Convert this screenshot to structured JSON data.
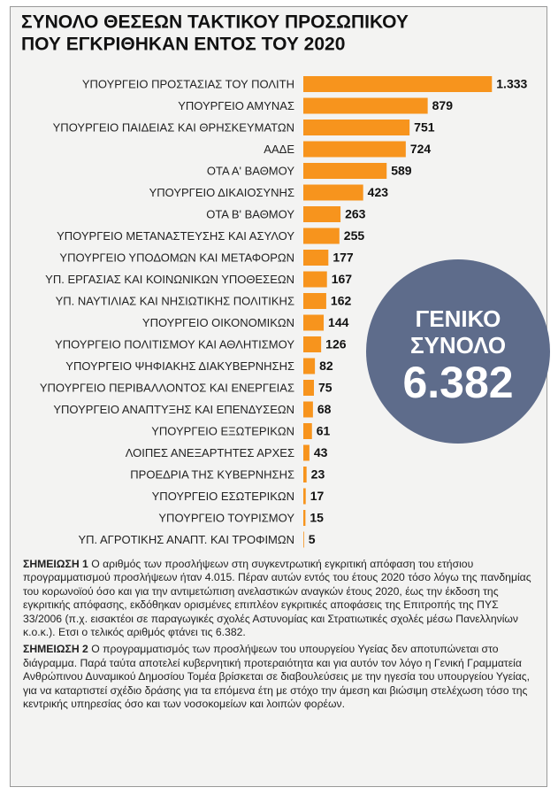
{
  "chart_data": {
    "type": "hbar",
    "title_lines": [
      "ΣΥΝΟΛΟ ΘΕΣΕΩΝ ΤΑΚΤΙΚΟΥ ΠΡΟΣΩΠΙΚΟΥ",
      "ΠΟΥ ΕΓΚΡΙΘΗΚΑΝ ΕΝΤΟΣ ΤΟΥ 2020"
    ],
    "categories": [
      "ΥΠΟΥΡΓΕΙΟ ΠΡΟΣΤΑΣΙΑΣ ΤΟΥ ΠΟΛΙΤΗ",
      "ΥΠΟΥΡΓΕΙΟ ΑΜΥΝΑΣ",
      "ΥΠΟΥΡΓΕΙΟ ΠΑΙΔΕΙΑΣ ΚΑΙ ΘΡΗΣΚΕΥΜΑΤΩΝ",
      "ΑΑΔΕ",
      "ΟΤΑ Α' ΒΑΘΜΟΥ",
      "ΥΠΟΥΡΓΕΙΟ ΔΙΚΑΙΟΣΥΝΗΣ",
      "ΟΤΑ Β' ΒΑΘΜΟΥ",
      "ΥΠΟΥΡΓΕΙΟ ΜΕΤΑΝΑΣΤΕΥΣΗΣ ΚΑΙ ΑΣΥΛΟΥ",
      "ΥΠΟΥΡΓΕΙΟ ΥΠΟΔΟΜΩΝ ΚΑΙ ΜΕΤΑΦΟΡΩΝ",
      "ΥΠ. ΕΡΓΑΣΙΑΣ ΚΑΙ ΚΟΙΝΩΝΙΚΩΝ ΥΠΟΘΕΣΕΩΝ",
      "ΥΠ. ΝΑΥΤΙΛΙΑΣ ΚΑΙ ΝΗΣΙΩΤΙΚΗΣ ΠΟΛΙΤΙΚΗΣ",
      "ΥΠΟΥΡΓΕΙΟ ΟΙΚΟΝΟΜΙΚΩΝ",
      "ΥΠΟΥΡΓΕΙΟ ΠΟΛΙΤΙΣΜΟΥ ΚΑΙ ΑΘΛΗΤΙΣΜΟΥ",
      "ΥΠΟΥΡΓΕΙΟ ΨΗΦΙΑΚΗΣ ΔΙΑΚΥΒΕΡΝΗΣΗΣ",
      "ΥΠΟΥΡΓΕΙΟ ΠΕΡΙΒΑΛΛΟΝΤΟΣ ΚΑΙ ΕΝΕΡΓΕΙΑΣ",
      "ΥΠΟΥΡΓΕΙΟ ΑΝΑΠΤΥΞΗΣ ΚΑΙ ΕΠΕΝΔΥΣΕΩΝ",
      "ΥΠΟΥΡΓΕΙΟ ΕΞΩΤΕΡΙΚΩΝ",
      "ΛΟΙΠΕΣ ΑΝΕΞΑΡΤΗΤΕΣ ΑΡΧΕΣ",
      "ΠΡΟΕΔΡΙΑ ΤΗΣ ΚΥΒΕΡΝΗΣΗΣ",
      "ΥΠΟΥΡΓΕΙΟ ΕΣΩΤΕΡΙΚΩΝ",
      "ΥΠΟΥΡΓΕΙΟ ΤΟΥΡΙΣΜΟΥ",
      "ΥΠ. ΑΓΡΟΤΙΚΗΣ ΑΝΑΠΤ. ΚΑΙ ΤΡΟΦΙΜΩΝ"
    ],
    "values": [
      1333,
      879,
      751,
      724,
      589,
      423,
      263,
      255,
      177,
      167,
      162,
      144,
      126,
      82,
      75,
      68,
      61,
      43,
      23,
      17,
      15,
      5
    ],
    "value_labels": [
      "1.333",
      "879",
      "751",
      "724",
      "589",
      "423",
      "263",
      "255",
      "177",
      "167",
      "162",
      "144",
      "126",
      "82",
      "75",
      "68",
      "61",
      "43",
      "23",
      "17",
      "15",
      "5"
    ],
    "color": "#f7941d",
    "total_title": [
      "ΓΕΝΙΚΟ",
      "ΣΥΝΟΛΟ"
    ],
    "total_text": "6.382",
    "notes": [
      {
        "label": "ΣΗΜΕΙΩΣΗ 1",
        "text": "Ο αριθμός των προσλήψεων στη συγκεντρωτική εγκριτική απόφαση του ετήσιου προγραμματισμού προσλήψεων ήταν 4.015. Πέραν αυτών εντός του έτους 2020 τόσο λόγω της πανδημίας του κορωνοϊού όσο και για την αντιμετώπιση ανελαστικών αναγκών έτους 2020, έως την έκδοση της εγκριτικής απόφασης, εκδόθηκαν ορισμένες επιπλέον εγκριτικές αποφάσεις της Επιτροπής της ΠΥΣ 33/2006 (π.χ. εισακτέοι σε παραγωγικές σχολές Αστυνομίας και Στρατιωτικές σχολές μέσω Πανελληνίων κ.ο.κ.). Ετσι ο τελικός αριθμός φτάνει τις 6.382."
      },
      {
        "label": "ΣΗΜΕΙΩΣΗ 2",
        "text": "Ο προγραμματισμός των προσλήψεων του υπουργείου Υγείας δεν αποτυπώνεται στο διάγραμμα. Παρά ταύτα αποτελεί κυβερνητική προτεραιότητα και για αυτόν τον λόγο η Γενική Γραμματεία Ανθρώπινου Δυναμικού Δημοσίου Τομέα βρίσκεται σε διαβουλεύσεις με την ηγεσία του υπουργείου Υγείας, για να καταρτιστεί σχέδιο δράσης για τα επόμενα έτη με στόχο την άμεση και βιώσιμη στελέχωση τόσο της κεντρικής υπηρεσίας όσο και των νοσοκομείων και λοιπών φορέων."
      }
    ]
  }
}
